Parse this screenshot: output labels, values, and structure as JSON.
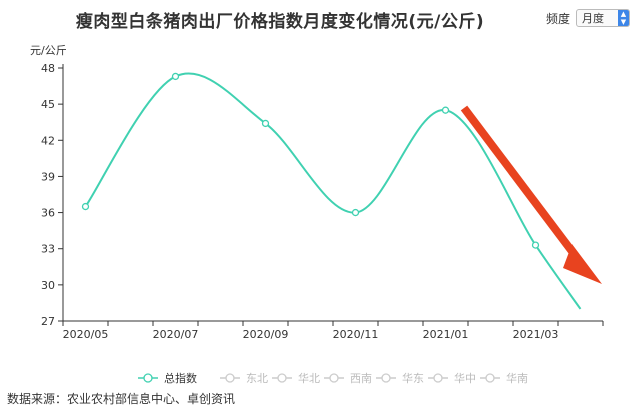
{
  "title": "瘦肉型白条猪肉出厂价格指数月度变化情况(元/公斤)",
  "frequency": {
    "label": "频度",
    "selected": "月度"
  },
  "source": "数据来源：农业农村部信息中心、卓创资讯",
  "colors": {
    "series": "#40d1b1",
    "arrow": "#e8431f",
    "inactive_legend": "#cccccc"
  },
  "chart_data": {
    "type": "line",
    "title": "瘦肉型白条猪肉出厂价格指数月度变化情况(元/公斤)",
    "ylabel": "元/公斤",
    "xlabel": "",
    "ylim": [
      27,
      48
    ],
    "yticks": [
      27,
      30,
      33,
      36,
      39,
      42,
      45,
      48
    ],
    "xticks": [
      "2020/05",
      "2020/07",
      "2020/09",
      "2020/11",
      "2021/01",
      "2021/03"
    ],
    "x": [
      "2020/05",
      "2020/06",
      "2020/07",
      "2020/08",
      "2020/09",
      "2020/10",
      "2020/11",
      "2020/12",
      "2021/01",
      "2021/02",
      "2021/03",
      "2021/04"
    ],
    "series": [
      {
        "name": "总指数",
        "values": [
          36.5,
          null,
          47.3,
          null,
          43.4,
          null,
          36.0,
          null,
          44.5,
          null,
          33.3,
          28.0
        ]
      }
    ],
    "legend": [
      {
        "name": "总指数",
        "active": true
      },
      {
        "name": "东北",
        "active": false
      },
      {
        "name": "华北",
        "active": false
      },
      {
        "name": "西南",
        "active": false
      },
      {
        "name": "华东",
        "active": false
      },
      {
        "name": "华中",
        "active": false
      },
      {
        "name": "华南",
        "active": false
      }
    ],
    "legend_position": "bottom",
    "grid": false,
    "annotation": "red downward arrow"
  }
}
